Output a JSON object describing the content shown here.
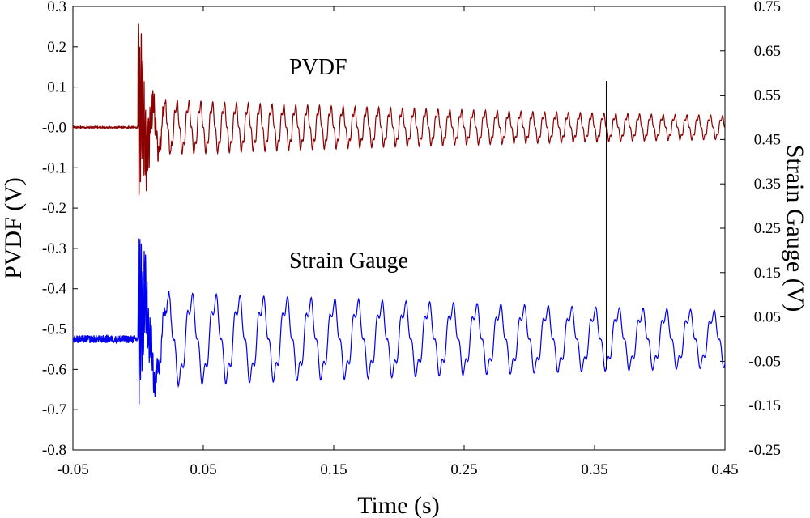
{
  "chart_data": {
    "type": "line",
    "title": "",
    "xlabel": "Time (s)",
    "ylabel_left": "PVDF (V)",
    "ylabel_right": "Strain Gauge (V)",
    "xlim": [
      -0.05,
      0.45
    ],
    "ylim_left": [
      -0.8,
      0.3
    ],
    "ylim_right": [
      -0.25,
      0.75
    ],
    "x_ticks": [
      "-0.05",
      "0.05",
      "0.15",
      "0.25",
      "0.35",
      "0.45"
    ],
    "y_left_ticks": [
      "0.3",
      "0.2",
      "0.1",
      "-0.0",
      "-0.1",
      "-0.2",
      "-0.3",
      "-0.4",
      "-0.5",
      "-0.6",
      "-0.7",
      "-0.8"
    ],
    "y_right_ticks": [
      "0.75",
      "0.65",
      "0.55",
      "0.45",
      "0.35",
      "0.25",
      "0.15",
      "0.05",
      "-0.05",
      "-0.15",
      "-0.25"
    ],
    "grid": false,
    "annotations": {
      "pvdf_label": "PVDF",
      "strain_label": "Strain Gauge"
    },
    "marker_line": {
      "x": 0.359,
      "y_left_from": -0.6,
      "y_left_to": 0.115
    },
    "series": [
      {
        "name": "PVDF",
        "axis": "left",
        "color": "#8b0000",
        "baseline": 0.0,
        "impact_time": 0.0,
        "pre_noise": 0.002,
        "fundamental_hz": 110,
        "initial_amplitude": 0.06,
        "final_amplitude": 0.025,
        "burst_amplitude": 0.25
      },
      {
        "name": "Strain Gauge",
        "axis": "left",
        "color": "#0000ee",
        "baseline": -0.525,
        "impact_time": 0.0,
        "pre_noise": 0.01,
        "fundamental_hz": 55,
        "initial_amplitude": 0.1,
        "final_amplitude": 0.06,
        "burst_amplitude": 0.25
      }
    ]
  }
}
